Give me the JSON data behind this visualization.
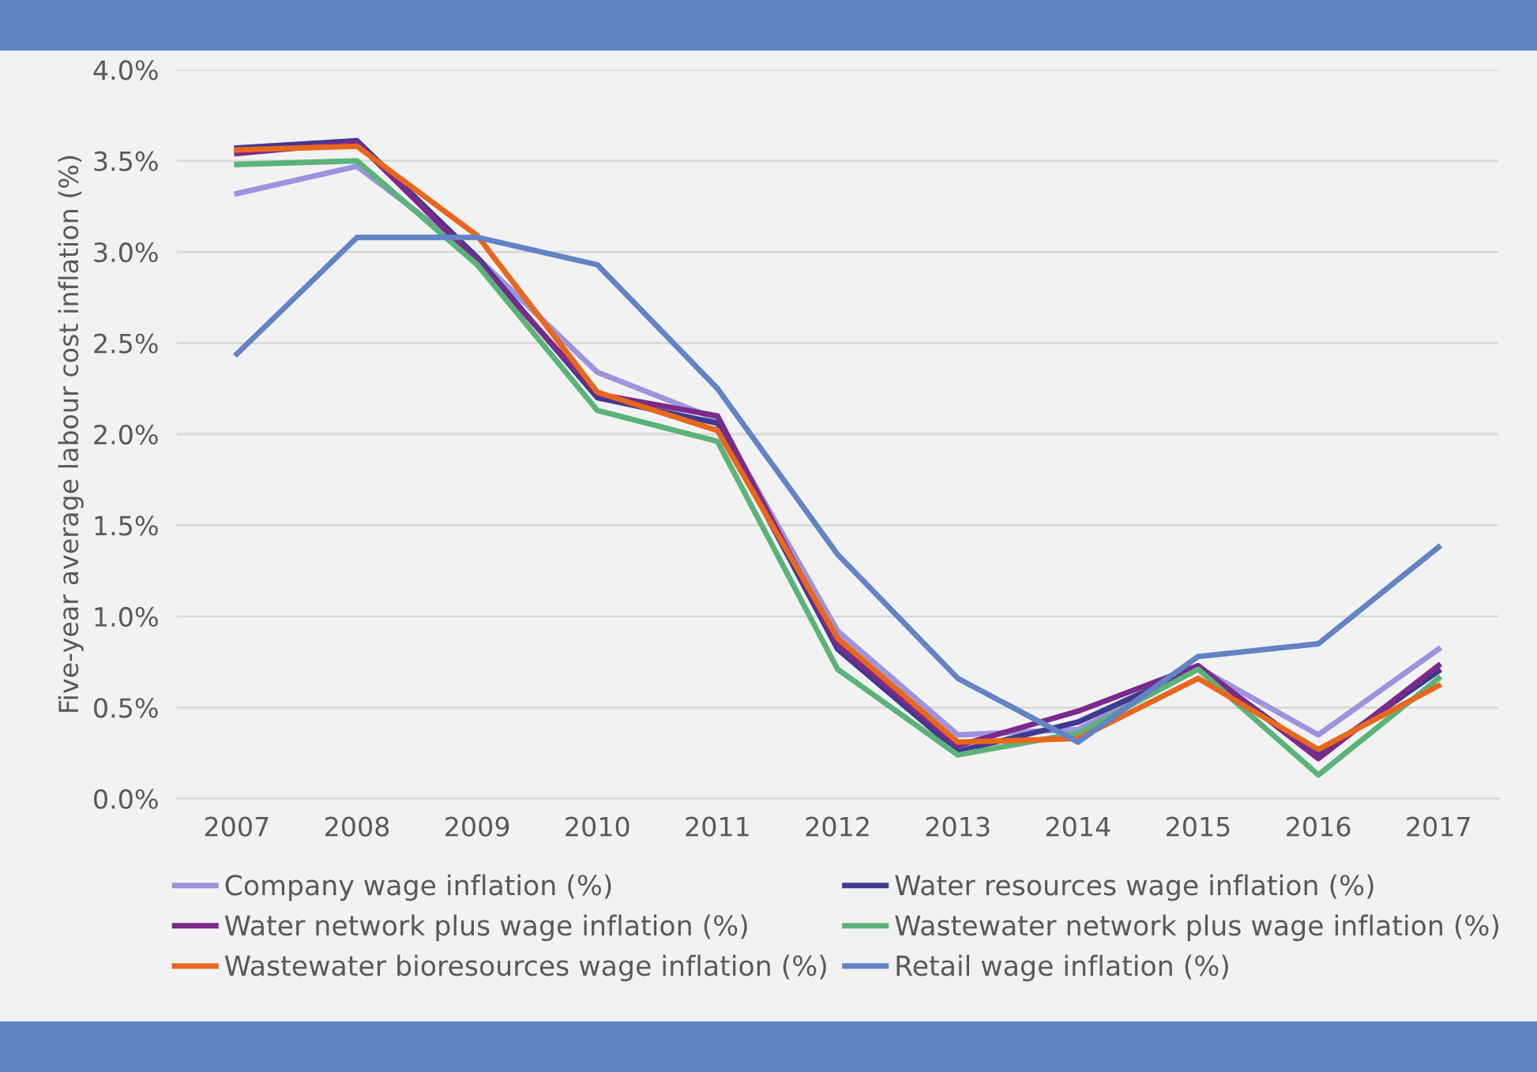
{
  "chart_data": {
    "type": "line",
    "ylabel": "Five-year average labour cost inflation (%)",
    "categories": [
      "2007",
      "2008",
      "2009",
      "2010",
      "2011",
      "2012",
      "2013",
      "2014",
      "2015",
      "2016",
      "2017"
    ],
    "series": [
      {
        "name": "Company wage inflation (%)",
        "color": "#9e93de",
        "values": [
          3.32,
          3.47,
          2.97,
          2.34,
          2.08,
          0.92,
          0.35,
          0.38,
          0.72,
          0.35,
          0.82
        ]
      },
      {
        "name": "Water resources wage inflation (%)",
        "color": "#3f3a8f",
        "values": [
          3.57,
          3.61,
          2.97,
          2.2,
          2.06,
          0.82,
          0.26,
          0.42,
          0.72,
          0.24,
          0.7
        ]
      },
      {
        "name": "Water network plus wage inflation (%)",
        "color": "#7a2a8a",
        "values": [
          3.54,
          3.6,
          2.95,
          2.22,
          2.1,
          0.84,
          0.29,
          0.48,
          0.73,
          0.22,
          0.73
        ]
      },
      {
        "name": "Wastewater network plus wage inflation (%)",
        "color": "#5bb37a",
        "values": [
          3.48,
          3.5,
          2.93,
          2.13,
          1.96,
          0.71,
          0.24,
          0.36,
          0.71,
          0.13,
          0.66
        ]
      },
      {
        "name": "Wastewater bioresources wage inflation (%)",
        "color": "#e8671c",
        "values": [
          3.56,
          3.58,
          3.09,
          2.23,
          2.02,
          0.88,
          0.31,
          0.33,
          0.66,
          0.27,
          0.62
        ]
      },
      {
        "name": "Retail wage inflation (%)",
        "color": "#6283c4",
        "values": [
          2.44,
          3.08,
          3.08,
          2.93,
          2.25,
          1.34,
          0.66,
          0.31,
          0.78,
          0.85,
          1.38
        ]
      }
    ],
    "ylim": [
      0,
      4
    ],
    "yticks": [
      {
        "value": 0,
        "label": "0.0%"
      },
      {
        "value": 0.5,
        "label": "0.5%"
      },
      {
        "value": 1,
        "label": "1.0%"
      },
      {
        "value": 1.5,
        "label": "1.5%"
      },
      {
        "value": 2,
        "label": "2.0%"
      },
      {
        "value": 2.5,
        "label": "2.5%"
      },
      {
        "value": 3,
        "label": "3.0%"
      },
      {
        "value": 3.5,
        "label": "3.5%"
      },
      {
        "value": 4,
        "label": "4.0%"
      }
    ],
    "grid": "y",
    "legend": "bottom",
    "marker": "none",
    "line_style": "solid"
  }
}
